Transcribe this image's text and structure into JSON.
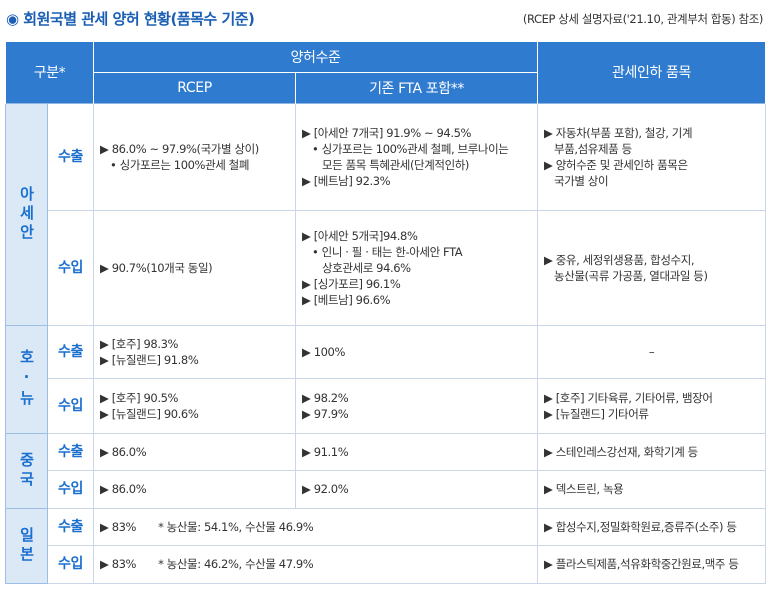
{
  "header": {
    "title": "◉ 회원국별 관세 양허 현황(품목수 기준)",
    "source": "(RCEP 상세 설명자료('21.10, 관계부처 합동) 참조)"
  },
  "table": {
    "head": {
      "category": "구분*",
      "level": "양허수준",
      "rcep": "RCEP",
      "fta": "기존 FTA 포함**",
      "items": "관세인하 품목"
    },
    "groups": [
      {
        "name": "아세안",
        "rows": [
          {
            "type": "수출",
            "rcep": [
              "▶ 86.0% ~ 97.9%(국가별 상이)",
              "• 싱가포르는 100%관세 철폐"
            ],
            "fta": [
              "▶ [아세안 7개국] 91.9% ~ 94.5%",
              "• 싱가포르는 100%관세 철폐, 브루나이는",
              "모든 품목 특혜관세(단계적인하)",
              "▶ [베트남] 92.3%"
            ],
            "items": [
              "▶ 자동차(부품 포함), 철강, 기계",
              "부품,섬유제품 등",
              "▶ 양허수준 및 관세인하 품목은",
              "국가별 상이"
            ]
          },
          {
            "type": "수입",
            "rcep": [
              "▶ 90.7%(10개국 동일)"
            ],
            "fta": [
              "▶ [아세안 5개국]94.8%",
              "• 인니 · 필 · 태는 한-아세안 FTA",
              "상호관세로 94.6%",
              "▶ [싱가포르] 96.1%",
              "▶ [베트남] 96.6%"
            ],
            "items": [
              "▶ 중유, 세정위생용품, 합성수지,",
              "농산물(곡류 가공품, 열대과일 등)"
            ]
          }
        ]
      },
      {
        "name": "호·뉴",
        "rows": [
          {
            "type": "수출",
            "rcep": [
              "▶ [호주] 98.3%",
              "▶ [뉴질랜드] 91.8%"
            ],
            "fta": [
              "▶ 100%"
            ],
            "items": [
              "–"
            ]
          },
          {
            "type": "수입",
            "rcep": [
              "▶ [호주] 90.5%",
              "▶ [뉴질랜드] 90.6%"
            ],
            "fta": [
              "▶ 98.2%",
              "▶ 97.9%"
            ],
            "items": [
              "▶ [호주] 기타육류, 기타어류, 뱀장어",
              "▶ [뉴질랜드] 기타어류"
            ]
          }
        ]
      },
      {
        "name": "중국",
        "rows": [
          {
            "type": "수출",
            "rcep": [
              "▶ 86.0%"
            ],
            "fta": [
              "▶ 91.1%"
            ],
            "items": [
              "▶ 스테인레스강선재, 화학기계 등"
            ]
          },
          {
            "type": "수입",
            "rcep": [
              "▶ 86.0%"
            ],
            "fta": [
              "▶ 92.0%"
            ],
            "items": [
              "▶ 덱스트린, 녹용"
            ]
          }
        ]
      },
      {
        "name": "일본",
        "rows": [
          {
            "type": "수출",
            "rcep": [
              "▶ 83%"
            ],
            "note": "* 농산물: 54.1%, 수산물 46.9%",
            "items": [
              "▶ 합성수지,정밀화학원료,증류주(소주) 등"
            ]
          },
          {
            "type": "수입",
            "rcep": [
              "▶ 83%"
            ],
            "note": "* 농산물: 46.2%, 수산물 47.9%",
            "items": [
              "▶ 플라스틱제품,석유화학중간원료,맥주 등"
            ]
          }
        ]
      }
    ]
  }
}
